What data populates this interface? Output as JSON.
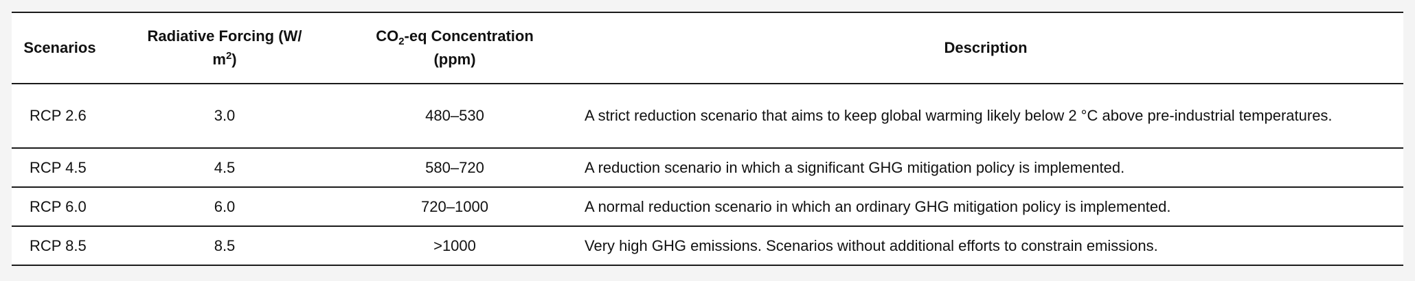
{
  "table": {
    "headers": {
      "scenarios": "Scenarios",
      "forcing_prefix": "Radiative Forcing (W/",
      "forcing_unit_base": "m",
      "forcing_unit_exp": "2",
      "forcing_suffix": ")",
      "conc_prefix": "CO",
      "conc_sub": "2",
      "conc_suffix": "-eq Concentration",
      "conc_unit": "(ppm)",
      "description": "Description"
    },
    "rows": [
      {
        "scenario": "RCP 2.6",
        "forcing": "3.0",
        "concentration": "480–530",
        "description": "A strict reduction scenario that aims to keep global warming likely below 2 °C above pre-industrial temperatures."
      },
      {
        "scenario": "RCP 4.5",
        "forcing": "4.5",
        "concentration": "580–720",
        "description": "A reduction scenario in which a significant GHG mitigation policy is implemented."
      },
      {
        "scenario": "RCP 6.0",
        "forcing": "6.0",
        "concentration": "720–1000",
        "description": "A normal reduction scenario in which an ordinary GHG mitigation policy is implemented."
      },
      {
        "scenario": "RCP 8.5",
        "forcing": "8.5",
        "concentration": ">1000",
        "description": "Very high GHG emissions. Scenarios without additional efforts to constrain emissions."
      }
    ]
  }
}
